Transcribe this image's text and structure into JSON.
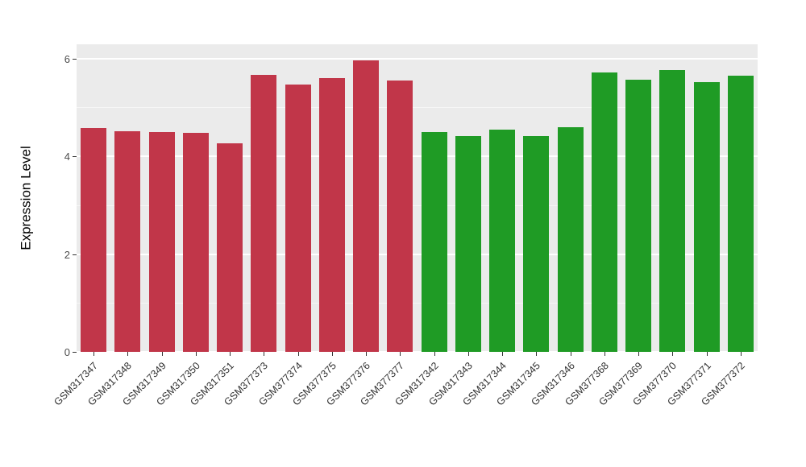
{
  "chart_data": {
    "type": "bar",
    "title": "",
    "xlabel": "",
    "ylabel": "Expression Level",
    "ylim": [
      0,
      6.3
    ],
    "yticks": [
      0,
      2,
      4,
      6
    ],
    "yminorticks": [
      1,
      3,
      5
    ],
    "grid": true,
    "legend_position": "none",
    "panel_background": "#EBEBEB",
    "group_colors": {
      "group1": "#C13649",
      "group2": "#1F9B25"
    },
    "categories": [
      "GSM317347",
      "GSM317348",
      "GSM317349",
      "GSM317350",
      "GSM317351",
      "GSM377373",
      "GSM377374",
      "GSM377375",
      "GSM377376",
      "GSM377377",
      "GSM317342",
      "GSM317343",
      "GSM317344",
      "GSM317345",
      "GSM317346",
      "GSM377368",
      "GSM377369",
      "GSM377370",
      "GSM377371",
      "GSM377372"
    ],
    "values": [
      4.58,
      4.52,
      4.5,
      4.48,
      4.27,
      5.68,
      5.48,
      5.6,
      5.97,
      5.55,
      4.5,
      4.42,
      4.56,
      4.42,
      4.6,
      5.73,
      5.57,
      5.78,
      5.52,
      5.66
    ],
    "points": [
      {
        "label": "GSM317347",
        "value": 4.58,
        "color": "#C13649"
      },
      {
        "label": "GSM317348",
        "value": 4.52,
        "color": "#C13649"
      },
      {
        "label": "GSM317349",
        "value": 4.5,
        "color": "#C13649"
      },
      {
        "label": "GSM317350",
        "value": 4.48,
        "color": "#C13649"
      },
      {
        "label": "GSM317351",
        "value": 4.27,
        "color": "#C13649"
      },
      {
        "label": "GSM377373",
        "value": 5.68,
        "color": "#C13649"
      },
      {
        "label": "GSM377374",
        "value": 5.48,
        "color": "#C13649"
      },
      {
        "label": "GSM377375",
        "value": 5.6,
        "color": "#C13649"
      },
      {
        "label": "GSM377376",
        "value": 5.97,
        "color": "#C13649"
      },
      {
        "label": "GSM377377",
        "value": 5.55,
        "color": "#C13649"
      },
      {
        "label": "GSM317342",
        "value": 4.5,
        "color": "#1F9B25"
      },
      {
        "label": "GSM317343",
        "value": 4.42,
        "color": "#1F9B25"
      },
      {
        "label": "GSM317344",
        "value": 4.56,
        "color": "#1F9B25"
      },
      {
        "label": "GSM317345",
        "value": 4.42,
        "color": "#1F9B25"
      },
      {
        "label": "GSM317346",
        "value": 4.6,
        "color": "#1F9B25"
      },
      {
        "label": "GSM377368",
        "value": 5.73,
        "color": "#1F9B25"
      },
      {
        "label": "GSM377369",
        "value": 5.57,
        "color": "#1F9B25"
      },
      {
        "label": "GSM377370",
        "value": 5.78,
        "color": "#1F9B25"
      },
      {
        "label": "GSM377371",
        "value": 5.52,
        "color": "#1F9B25"
      },
      {
        "label": "GSM377372",
        "value": 5.66,
        "color": "#1F9B25"
      }
    ]
  }
}
